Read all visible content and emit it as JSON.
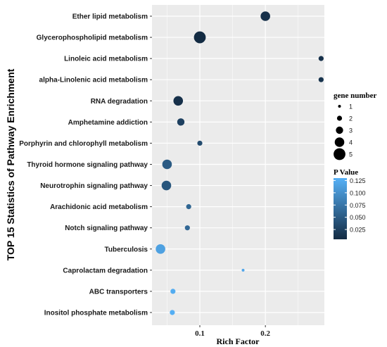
{
  "chart_data": {
    "type": "scatter",
    "xlabel": "Rich Factor",
    "ylabel": "TOP 15 Statistics of Pathway Enrichment",
    "xlim": [
      0.027,
      0.29
    ],
    "x_ticks": [
      0.1,
      0.2
    ],
    "x_tick_labels": [
      "0.1",
      "0.2"
    ],
    "grid": true,
    "points": [
      {
        "category": "Ether lipid metabolism",
        "x": 0.2,
        "gene_number": 4,
        "p_value": 0.01
      },
      {
        "category": "Glycerophospholipid metabolism",
        "x": 0.1,
        "gene_number": 5,
        "p_value": 0.005
      },
      {
        "category": "Linoleic acid metabolism",
        "x": 0.285,
        "gene_number": 2,
        "p_value": 0.01
      },
      {
        "category": "alpha-Linolenic acid metabolism",
        "x": 0.285,
        "gene_number": 2,
        "p_value": 0.012
      },
      {
        "category": "RNA degradation",
        "x": 0.067,
        "gene_number": 4,
        "p_value": 0.01
      },
      {
        "category": "Amphetamine addiction",
        "x": 0.071,
        "gene_number": 3,
        "p_value": 0.025
      },
      {
        "category": "Porphyrin and chlorophyll metabolism",
        "x": 0.1,
        "gene_number": 2,
        "p_value": 0.035
      },
      {
        "category": "Thyroid hormone signaling pathway",
        "x": 0.05,
        "gene_number": 4,
        "p_value": 0.05
      },
      {
        "category": "Neurotrophin signaling pathway",
        "x": 0.049,
        "gene_number": 4,
        "p_value": 0.045
      },
      {
        "category": "Arachidonic acid metabolism",
        "x": 0.083,
        "gene_number": 2,
        "p_value": 0.06
      },
      {
        "category": "Notch signaling pathway",
        "x": 0.081,
        "gene_number": 2,
        "p_value": 0.062
      },
      {
        "category": "Tuberculosis",
        "x": 0.04,
        "gene_number": 4,
        "p_value": 0.115
      },
      {
        "category": "Caprolactam degradation",
        "x": 0.166,
        "gene_number": 1,
        "p_value": 0.12
      },
      {
        "category": "ABC transporters",
        "x": 0.059,
        "gene_number": 2,
        "p_value": 0.125
      },
      {
        "category": "Inositol phosphate metabolism",
        "x": 0.058,
        "gene_number": 2,
        "p_value": 0.128
      }
    ],
    "size_legend": {
      "title": "gene number",
      "values": [
        1,
        2,
        3,
        4,
        5
      ],
      "labels": [
        "1",
        "2",
        "3",
        "4",
        "5"
      ]
    },
    "color_legend": {
      "title": "P Value",
      "range": [
        0.005,
        0.13
      ],
      "ticks": [
        0.125,
        0.1,
        0.075,
        0.05,
        0.025
      ],
      "tick_labels": [
        "0.125",
        "0.100",
        "0.075",
        "0.050",
        "0.025"
      ],
      "low_color": "#132b43",
      "high_color": "#56b1f7"
    },
    "panel_background": "#ebebeb",
    "grid_color": "#ffffff"
  }
}
